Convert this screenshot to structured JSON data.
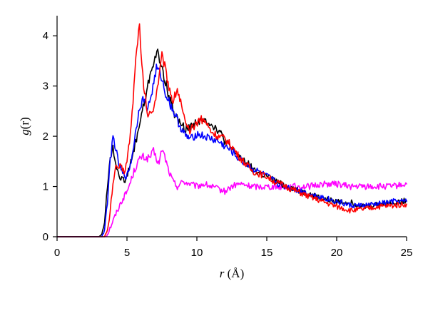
{
  "chart_data": {
    "type": "line",
    "xlabel_var": "r",
    "xlabel_unit": " (Å)",
    "ylabel_var": "g",
    "ylabel_arg": "(r)",
    "xlim": [
      0,
      25
    ],
    "ylim": [
      0,
      4.4
    ],
    "xticks": [
      0,
      5,
      10,
      15,
      20,
      25
    ],
    "yticks": [
      0,
      1,
      2,
      3,
      4
    ],
    "grid": false,
    "series": [
      {
        "color": "#ff00ff",
        "points": [
          [
            0,
            0
          ],
          [
            3.0,
            0
          ],
          [
            3.3,
            0
          ],
          [
            3.6,
            0.05
          ],
          [
            3.9,
            0.25
          ],
          [
            4.2,
            0.45
          ],
          [
            4.6,
            0.7
          ],
          [
            5.0,
            0.9
          ],
          [
            5.2,
            1.05
          ],
          [
            5.5,
            1.3
          ],
          [
            5.8,
            1.5
          ],
          [
            6.1,
            1.6
          ],
          [
            6.4,
            1.55
          ],
          [
            6.7,
            1.6
          ],
          [
            6.9,
            1.7
          ],
          [
            7.1,
            1.55
          ],
          [
            7.3,
            1.45
          ],
          [
            7.5,
            1.75
          ],
          [
            7.7,
            1.6
          ],
          [
            8.0,
            1.3
          ],
          [
            8.3,
            1.1
          ],
          [
            8.6,
            1.0
          ],
          [
            9.0,
            1.1
          ],
          [
            9.5,
            1.05
          ],
          [
            10.0,
            1.0
          ],
          [
            10.5,
            1.05
          ],
          [
            11.0,
            1.0
          ],
          [
            11.5,
            0.95
          ],
          [
            12.0,
            0.9
          ],
          [
            12.5,
            1.0
          ],
          [
            13.0,
            1.05
          ],
          [
            14.0,
            1.0
          ],
          [
            15.0,
            1.0
          ],
          [
            16.0,
            1.0
          ],
          [
            17.0,
            1.0
          ],
          [
            18.0,
            1.0
          ],
          [
            19.0,
            1.05
          ],
          [
            20.0,
            1.05
          ],
          [
            21.0,
            1.0
          ],
          [
            22.0,
            1.0
          ],
          [
            23.0,
            1.0
          ],
          [
            24.0,
            1.0
          ],
          [
            25.0,
            1.05
          ]
        ]
      },
      {
        "color": "#000000",
        "points": [
          [
            0,
            0
          ],
          [
            3.0,
            0
          ],
          [
            3.2,
            0.05
          ],
          [
            3.4,
            0.3
          ],
          [
            3.6,
            1.0
          ],
          [
            3.8,
            1.6
          ],
          [
            4.0,
            1.75
          ],
          [
            4.2,
            1.45
          ],
          [
            4.5,
            1.2
          ],
          [
            4.8,
            1.1
          ],
          [
            5.1,
            1.3
          ],
          [
            5.4,
            1.6
          ],
          [
            5.8,
            2.1
          ],
          [
            6.1,
            2.5
          ],
          [
            6.4,
            2.85
          ],
          [
            6.7,
            3.3
          ],
          [
            7.0,
            3.55
          ],
          [
            7.2,
            3.65
          ],
          [
            7.4,
            3.45
          ],
          [
            7.7,
            3.15
          ],
          [
            8.0,
            2.8
          ],
          [
            8.4,
            2.45
          ],
          [
            8.8,
            2.25
          ],
          [
            9.2,
            2.15
          ],
          [
            9.6,
            2.2
          ],
          [
            10.0,
            2.3
          ],
          [
            10.4,
            2.3
          ],
          [
            10.8,
            2.3
          ],
          [
            11.2,
            2.2
          ],
          [
            11.6,
            2.1
          ],
          [
            12.0,
            1.9
          ],
          [
            12.5,
            1.75
          ],
          [
            13.0,
            1.6
          ],
          [
            13.5,
            1.5
          ],
          [
            14.0,
            1.35
          ],
          [
            14.5,
            1.25
          ],
          [
            15.0,
            1.2
          ],
          [
            15.5,
            1.12
          ],
          [
            16.0,
            1.05
          ],
          [
            16.5,
            1.0
          ],
          [
            17.0,
            0.95
          ],
          [
            18.0,
            0.85
          ],
          [
            19.0,
            0.75
          ],
          [
            20.0,
            0.7
          ],
          [
            21.0,
            0.68
          ],
          [
            22.0,
            0.6
          ],
          [
            23.0,
            0.65
          ],
          [
            24.0,
            0.68
          ],
          [
            25.0,
            0.72
          ]
        ]
      },
      {
        "color": "#0000ff",
        "points": [
          [
            0,
            0
          ],
          [
            3.0,
            0
          ],
          [
            3.2,
            0
          ],
          [
            3.4,
            0.15
          ],
          [
            3.6,
            0.7
          ],
          [
            3.8,
            1.5
          ],
          [
            4.0,
            2.0
          ],
          [
            4.2,
            1.75
          ],
          [
            4.4,
            1.45
          ],
          [
            4.7,
            1.25
          ],
          [
            5.0,
            1.2
          ],
          [
            5.3,
            1.5
          ],
          [
            5.6,
            2.05
          ],
          [
            5.9,
            2.6
          ],
          [
            6.2,
            2.75
          ],
          [
            6.5,
            2.55
          ],
          [
            6.8,
            2.9
          ],
          [
            7.1,
            3.35
          ],
          [
            7.4,
            3.25
          ],
          [
            7.7,
            2.9
          ],
          [
            8.0,
            2.7
          ],
          [
            8.4,
            2.45
          ],
          [
            8.8,
            2.2
          ],
          [
            9.2,
            2.0
          ],
          [
            9.6,
            1.95
          ],
          [
            10.0,
            2.05
          ],
          [
            10.5,
            2.0
          ],
          [
            11.0,
            1.95
          ],
          [
            11.5,
            1.9
          ],
          [
            12.0,
            1.8
          ],
          [
            12.5,
            1.7
          ],
          [
            13.0,
            1.55
          ],
          [
            13.5,
            1.45
          ],
          [
            14.0,
            1.35
          ],
          [
            14.5,
            1.28
          ],
          [
            15.0,
            1.2
          ],
          [
            15.5,
            1.12
          ],
          [
            16.0,
            1.02
          ],
          [
            16.5,
            0.98
          ],
          [
            17.0,
            0.95
          ],
          [
            18.0,
            0.85
          ],
          [
            19.0,
            0.78
          ],
          [
            20.0,
            0.7
          ],
          [
            21.0,
            0.62
          ],
          [
            22.0,
            0.62
          ],
          [
            23.0,
            0.65
          ],
          [
            24.0,
            0.7
          ],
          [
            25.0,
            0.7
          ]
        ]
      },
      {
        "color": "#ff0000",
        "points": [
          [
            0,
            0
          ],
          [
            3.0,
            0
          ],
          [
            3.4,
            0
          ],
          [
            3.6,
            0.1
          ],
          [
            3.8,
            0.5
          ],
          [
            4.0,
            1.1
          ],
          [
            4.2,
            1.35
          ],
          [
            4.5,
            1.4
          ],
          [
            4.8,
            1.3
          ],
          [
            5.0,
            1.5
          ],
          [
            5.3,
            2.2
          ],
          [
            5.5,
            3.0
          ],
          [
            5.7,
            3.8
          ],
          [
            5.9,
            4.2
          ],
          [
            6.0,
            3.6
          ],
          [
            6.2,
            3.0
          ],
          [
            6.5,
            2.4
          ],
          [
            6.8,
            2.5
          ],
          [
            7.0,
            2.7
          ],
          [
            7.3,
            3.2
          ],
          [
            7.5,
            3.6
          ],
          [
            7.7,
            3.4
          ],
          [
            8.0,
            3.0
          ],
          [
            8.3,
            2.7
          ],
          [
            8.6,
            2.95
          ],
          [
            8.9,
            2.6
          ],
          [
            9.2,
            2.2
          ],
          [
            9.5,
            2.1
          ],
          [
            9.8,
            2.2
          ],
          [
            10.2,
            2.35
          ],
          [
            10.6,
            2.3
          ],
          [
            11.0,
            2.1
          ],
          [
            11.5,
            2.0
          ],
          [
            12.0,
            1.95
          ],
          [
            12.5,
            1.8
          ],
          [
            13.0,
            1.6
          ],
          [
            13.5,
            1.45
          ],
          [
            14.0,
            1.3
          ],
          [
            14.5,
            1.25
          ],
          [
            15.0,
            1.2
          ],
          [
            15.5,
            1.1
          ],
          [
            16.0,
            1.05
          ],
          [
            16.5,
            0.98
          ],
          [
            17.0,
            0.92
          ],
          [
            18.0,
            0.8
          ],
          [
            19.0,
            0.7
          ],
          [
            20.0,
            0.6
          ],
          [
            21.0,
            0.52
          ],
          [
            22.0,
            0.55
          ],
          [
            23.0,
            0.6
          ],
          [
            24.0,
            0.62
          ],
          [
            25.0,
            0.65
          ]
        ]
      }
    ]
  }
}
